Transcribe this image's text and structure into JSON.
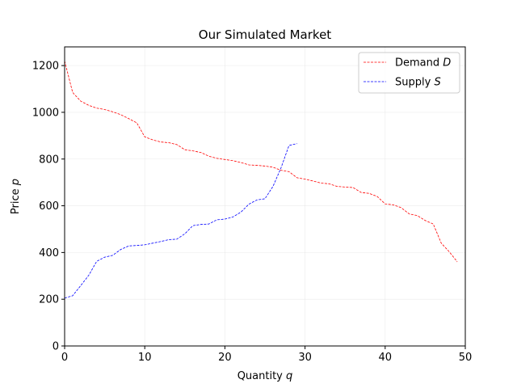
{
  "chart_data": {
    "type": "line",
    "title": "Our Simulated Market",
    "xlabel": {
      "prefix": "Quantity ",
      "var": "q"
    },
    "ylabel": {
      "prefix": "Price ",
      "var": "p"
    },
    "xlim": [
      0,
      50
    ],
    "ylim": [
      0,
      1280
    ],
    "xticks": [
      0,
      10,
      20,
      30,
      40,
      50
    ],
    "yticks": [
      0,
      200,
      400,
      600,
      800,
      1000,
      1200
    ],
    "grid": true,
    "legend_position": "top-right",
    "series": [
      {
        "name": {
          "prefix": "Demand ",
          "var": "D"
        },
        "color": "#ff0000",
        "linestyle": "dashed",
        "x": [
          0,
          1,
          2,
          3,
          4,
          5,
          6,
          7,
          8,
          9,
          10,
          11,
          12,
          13,
          14,
          15,
          16,
          17,
          18,
          19,
          20,
          21,
          22,
          23,
          24,
          25,
          26,
          27,
          28,
          29,
          30,
          31,
          32,
          33,
          34,
          35,
          36,
          37,
          38,
          39,
          40,
          41,
          42,
          43,
          44,
          45,
          46,
          47,
          48,
          49
        ],
        "y": [
          1220,
          1085,
          1048,
          1030,
          1018,
          1012,
          1002,
          990,
          973,
          955,
          895,
          882,
          873,
          870,
          862,
          840,
          835,
          828,
          812,
          803,
          798,
          793,
          785,
          775,
          773,
          770,
          765,
          752,
          746,
          720,
          714,
          706,
          697,
          694,
          683,
          680,
          678,
          657,
          653,
          640,
          608,
          604,
          592,
          565,
          558,
          537,
          522,
          440,
          403,
          360
        ]
      },
      {
        "name": {
          "prefix": "Supply ",
          "var": "S"
        },
        "color": "#0000ff",
        "linestyle": "dashed",
        "x": [
          0,
          1,
          2,
          3,
          4,
          5,
          6,
          7,
          8,
          9,
          10,
          11,
          12,
          13,
          14,
          15,
          16,
          17,
          18,
          19,
          20,
          21,
          22,
          23,
          24,
          25,
          26,
          27,
          28,
          29
        ],
        "y": [
          205,
          215,
          258,
          302,
          362,
          380,
          388,
          413,
          428,
          430,
          433,
          440,
          447,
          455,
          457,
          480,
          515,
          520,
          522,
          540,
          543,
          552,
          573,
          607,
          625,
          630,
          683,
          762,
          858,
          866
        ]
      }
    ]
  }
}
